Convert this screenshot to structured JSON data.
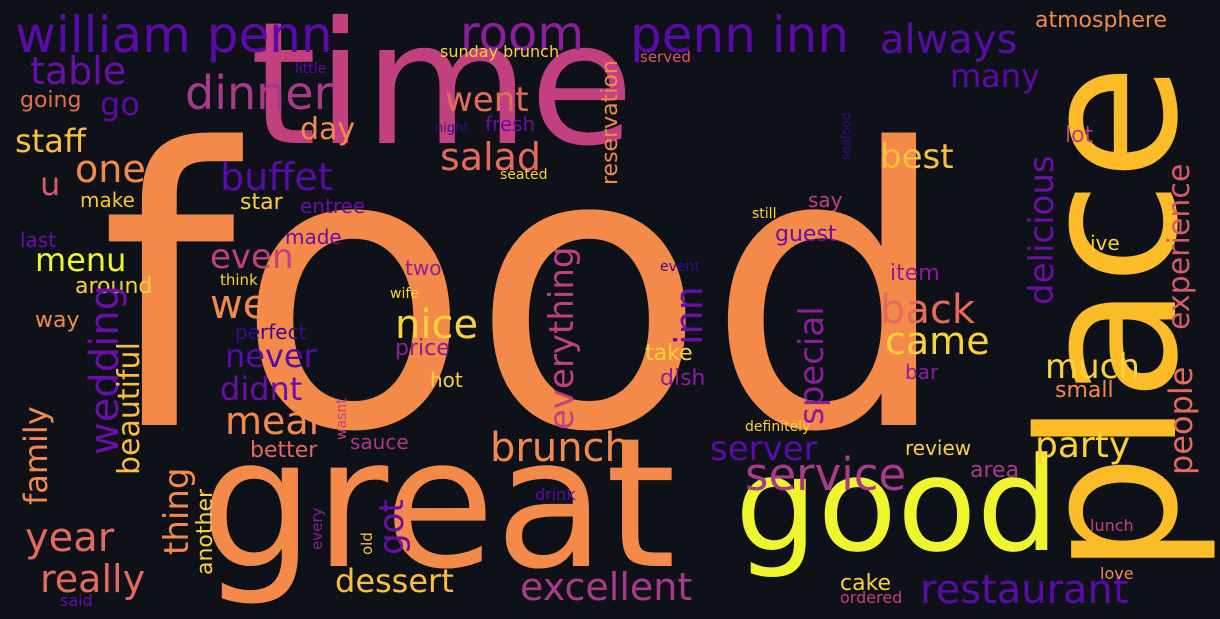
{
  "words": [
    {
      "text": "food",
      "color": "#f48a4a"
    },
    {
      "text": "time",
      "color": "#c2407f"
    },
    {
      "text": "place",
      "color": "#fbbc27"
    },
    {
      "text": "great",
      "color": "#f48a4a"
    },
    {
      "text": "good",
      "color": "#eef52d"
    },
    {
      "text": "william penn",
      "color": "#5a0aa8"
    },
    {
      "text": "penn inn",
      "color": "#5a0aa8"
    },
    {
      "text": "room",
      "color": "#8c1d9c"
    },
    {
      "text": "always",
      "color": "#5a0aa8"
    },
    {
      "text": "atmosphere",
      "color": "#f48a4a"
    },
    {
      "text": "table",
      "color": "#6a0ea8"
    },
    {
      "text": "dinner",
      "color": "#a83a8a"
    },
    {
      "text": "went",
      "color": "#e36a5c"
    },
    {
      "text": "many",
      "color": "#5a0aa8"
    },
    {
      "text": "sunday brunch",
      "color": "#fbd23a"
    },
    {
      "text": "served",
      "color": "#d65a6a"
    },
    {
      "text": "little",
      "color": "#5a0aa8"
    },
    {
      "text": "going",
      "color": "#e07050"
    },
    {
      "text": "go",
      "color": "#5a0aa8"
    },
    {
      "text": "staff",
      "color": "#fbc03a"
    },
    {
      "text": "one",
      "color": "#f48a4a"
    },
    {
      "text": "u",
      "color": "#d65a6a"
    },
    {
      "text": "make",
      "color": "#fbc03a"
    },
    {
      "text": "day",
      "color": "#f48a4a"
    },
    {
      "text": "salad",
      "color": "#e36a5c"
    },
    {
      "text": "buffet",
      "color": "#5a0aa8"
    },
    {
      "text": "fresh",
      "color": "#6a0ea8"
    },
    {
      "text": "night",
      "color": "#3a0a8a"
    },
    {
      "text": "seated",
      "color": "#fbd23a"
    },
    {
      "text": "reservation",
      "color": "#f48a4a"
    },
    {
      "text": "best",
      "color": "#fbc03a"
    },
    {
      "text": "lot",
      "color": "#c2407f"
    },
    {
      "text": "seafood",
      "color": "#3a0a8a"
    },
    {
      "text": "delicious",
      "color": "#6a0ea8"
    },
    {
      "text": "experience",
      "color": "#d65a6a"
    },
    {
      "text": "star",
      "color": "#fbd23a"
    },
    {
      "text": "entree",
      "color": "#6a0ea8"
    },
    {
      "text": "say",
      "color": "#c2407f"
    },
    {
      "text": "still",
      "color": "#fbd23a"
    },
    {
      "text": "last",
      "color": "#6a0ea8"
    },
    {
      "text": "made",
      "color": "#6a0ea8"
    },
    {
      "text": "guest",
      "color": "#6a0ea8"
    },
    {
      "text": "ive",
      "color": "#fbd23a"
    },
    {
      "text": "menu",
      "color": "#eef52d"
    },
    {
      "text": "even",
      "color": "#c2407f"
    },
    {
      "text": "everything",
      "color": "#c2407f"
    },
    {
      "text": "two",
      "color": "#8c1d9c"
    },
    {
      "text": "event",
      "color": "#3a0a8a"
    },
    {
      "text": "item",
      "color": "#8c1d9c"
    },
    {
      "text": "around",
      "color": "#fbd23a"
    },
    {
      "text": "think",
      "color": "#fbd23a"
    },
    {
      "text": "well",
      "color": "#f48a4a"
    },
    {
      "text": "inn",
      "color": "#6a0ea8"
    },
    {
      "text": "wife",
      "color": "#fbd23a"
    },
    {
      "text": "way",
      "color": "#f48a4a"
    },
    {
      "text": "nice",
      "color": "#fbd23a"
    },
    {
      "text": "back",
      "color": "#e36a5c"
    },
    {
      "text": "perfect",
      "color": "#3a0a8a"
    },
    {
      "text": "came",
      "color": "#fbd23a"
    },
    {
      "text": "wedding",
      "color": "#6a0ea8"
    },
    {
      "text": "price",
      "color": "#8c1d9c"
    },
    {
      "text": "take",
      "color": "#fbd23a"
    },
    {
      "text": "never",
      "color": "#5a0aa8"
    },
    {
      "text": "special",
      "color": "#8c1d9c"
    },
    {
      "text": "people",
      "color": "#e36a5c"
    },
    {
      "text": "dish",
      "color": "#8c1d9c"
    },
    {
      "text": "bar",
      "color": "#8c1d9c"
    },
    {
      "text": "much",
      "color": "#fbd23a"
    },
    {
      "text": "hot",
      "color": "#fbd23a"
    },
    {
      "text": "didnt",
      "color": "#6a0ea8"
    },
    {
      "text": "small",
      "color": "#f48a4a"
    },
    {
      "text": "family",
      "color": "#f48a4a"
    },
    {
      "text": "meal",
      "color": "#f48a4a"
    },
    {
      "text": "beautiful",
      "color": "#fbc03a"
    },
    {
      "text": "definitely",
      "color": "#fbd23a"
    },
    {
      "text": "wasnt",
      "color": "#c2407f"
    },
    {
      "text": "party",
      "color": "#fbd23a"
    },
    {
      "text": "brunch",
      "color": "#f48a4a"
    },
    {
      "text": "sauce",
      "color": "#a83a8a"
    },
    {
      "text": "server",
      "color": "#5a0aa8"
    },
    {
      "text": "review",
      "color": "#fbd23a"
    },
    {
      "text": "better",
      "color": "#e36a5c"
    },
    {
      "text": "thing",
      "color": "#f48a4a"
    },
    {
      "text": "service",
      "color": "#a83a8a"
    },
    {
      "text": "area",
      "color": "#a83a8a"
    },
    {
      "text": "got",
      "color": "#6a0ea8"
    },
    {
      "text": "another",
      "color": "#fbd23a"
    },
    {
      "text": "year",
      "color": "#e36a5c"
    },
    {
      "text": "drink",
      "color": "#5a0aa8"
    },
    {
      "text": "lunch",
      "color": "#c2407f"
    },
    {
      "text": "every",
      "color": "#8c1d9c"
    },
    {
      "text": "old",
      "color": "#fbc03a"
    },
    {
      "text": "really",
      "color": "#e36a5c"
    },
    {
      "text": "dessert",
      "color": "#fbc03a"
    },
    {
      "text": "excellent",
      "color": "#a83a8a"
    },
    {
      "text": "cake",
      "color": "#fbd23a"
    },
    {
      "text": "restaurant",
      "color": "#5a0aa8"
    },
    {
      "text": "love",
      "color": "#f48a4a"
    },
    {
      "text": "ordered",
      "color": "#c2407f"
    },
    {
      "text": "said",
      "color": "#6a0ea8"
    }
  ]
}
